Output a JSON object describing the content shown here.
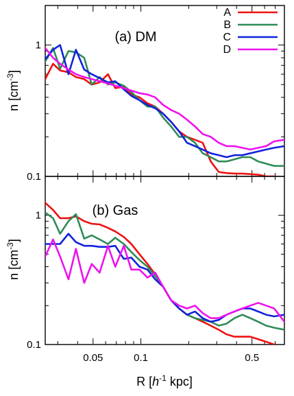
{
  "figure": {
    "xlabel_prefix": "R [",
    "xlabel_italic": "h",
    "xlabel_sup": "-1",
    "xlabel_suffix": " kpc]",
    "ylabel_main": "n [cm",
    "ylabel_sup": "-3",
    "ylabel_close": "]"
  },
  "chart_data": [
    {
      "type": "line",
      "title": "(a) DM",
      "xscale": "log",
      "yscale": "log",
      "xlim": [
        0.025,
        0.8
      ],
      "ylim": [
        0.1,
        2.0
      ],
      "xticks": [
        0.05,
        0.1,
        0.5
      ],
      "xticklabels": [
        "",
        "",
        ""
      ],
      "yticks": [
        0.1,
        1
      ],
      "yticklabels": [
        "0.1",
        "1"
      ],
      "legend": "top-right",
      "series": [
        {
          "name": "A",
          "color": "#ee1111",
          "x": [
            0.025,
            0.028,
            0.031,
            0.035,
            0.039,
            0.044,
            0.049,
            0.055,
            0.062,
            0.069,
            0.078,
            0.087,
            0.098,
            0.11,
            0.123,
            0.138,
            0.155,
            0.174,
            0.195,
            0.219,
            0.245,
            0.275,
            0.309,
            0.346,
            0.388,
            0.435,
            0.488,
            0.547,
            0.614,
            0.7
          ],
          "y": [
            0.55,
            0.72,
            0.64,
            0.62,
            0.57,
            0.55,
            0.5,
            0.52,
            0.6,
            0.47,
            0.48,
            0.42,
            0.4,
            0.36,
            0.34,
            0.3,
            0.26,
            0.22,
            0.2,
            0.19,
            0.18,
            0.13,
            0.108,
            0.106,
            0.105,
            0.105,
            0.104,
            0.103,
            0.1,
            0.1
          ]
        },
        {
          "name": "B",
          "color": "#2e8b57",
          "x": [
            0.025,
            0.028,
            0.031,
            0.035,
            0.039,
            0.044,
            0.049,
            0.055,
            0.062,
            0.069,
            0.078,
            0.087,
            0.098,
            0.11,
            0.123,
            0.138,
            0.155,
            0.174,
            0.195,
            0.219,
            0.245,
            0.275,
            0.309,
            0.346,
            0.388,
            0.435,
            0.488,
            0.547,
            0.614,
            0.69,
            0.8
          ],
          "y": [
            0.75,
            0.95,
            0.66,
            0.9,
            0.88,
            0.8,
            0.5,
            0.57,
            0.5,
            0.52,
            0.49,
            0.44,
            0.38,
            0.34,
            0.34,
            0.28,
            0.24,
            0.2,
            0.2,
            0.18,
            0.15,
            0.14,
            0.13,
            0.13,
            0.135,
            0.14,
            0.14,
            0.13,
            0.125,
            0.12,
            0.12
          ]
        },
        {
          "name": "C",
          "color": "#1122dd",
          "x": [
            0.025,
            0.028,
            0.031,
            0.035,
            0.039,
            0.044,
            0.049,
            0.055,
            0.062,
            0.069,
            0.078,
            0.087,
            0.098,
            0.11,
            0.123,
            0.138,
            0.155,
            0.174,
            0.195,
            0.219,
            0.245,
            0.275,
            0.309,
            0.346,
            0.388,
            0.435,
            0.488,
            0.547,
            0.614,
            0.69,
            0.8
          ],
          "y": [
            0.78,
            0.92,
            1.0,
            0.6,
            0.92,
            0.65,
            0.6,
            0.56,
            0.52,
            0.53,
            0.46,
            0.41,
            0.38,
            0.35,
            0.33,
            0.3,
            0.26,
            0.22,
            0.18,
            0.17,
            0.16,
            0.15,
            0.145,
            0.14,
            0.145,
            0.145,
            0.15,
            0.155,
            0.16,
            0.165,
            0.17
          ]
        },
        {
          "name": "D",
          "color": "#ee11ee",
          "x": [
            0.025,
            0.028,
            0.031,
            0.035,
            0.039,
            0.044,
            0.049,
            0.055,
            0.062,
            0.069,
            0.078,
            0.087,
            0.098,
            0.11,
            0.123,
            0.138,
            0.155,
            0.174,
            0.195,
            0.219,
            0.245,
            0.275,
            0.309,
            0.346,
            0.388,
            0.435,
            0.488,
            0.547,
            0.614,
            0.69,
            0.8
          ],
          "y": [
            0.95,
            0.8,
            0.72,
            0.65,
            0.6,
            0.57,
            0.55,
            0.53,
            0.51,
            0.49,
            0.47,
            0.45,
            0.43,
            0.42,
            0.4,
            0.35,
            0.32,
            0.3,
            0.27,
            0.24,
            0.21,
            0.2,
            0.18,
            0.17,
            0.17,
            0.165,
            0.16,
            0.165,
            0.17,
            0.185,
            0.19
          ]
        }
      ]
    },
    {
      "type": "line",
      "title": "(b) Gas",
      "xscale": "log",
      "yscale": "log",
      "xlim": [
        0.025,
        0.8
      ],
      "ylim": [
        0.1,
        2.0
      ],
      "xticks": [
        0.05,
        0.1,
        0.5
      ],
      "xticklabels": [
        "0.05",
        "0.1",
        "0.5"
      ],
      "yticks": [
        0.1,
        1
      ],
      "yticklabels": [
        "0.1",
        "1"
      ],
      "series": [
        {
          "name": "A",
          "color": "#ee1111",
          "x": [
            0.025,
            0.028,
            0.031,
            0.035,
            0.039,
            0.044,
            0.049,
            0.055,
            0.062,
            0.069,
            0.078,
            0.087,
            0.098,
            0.11,
            0.123,
            0.138,
            0.155,
            0.174,
            0.195,
            0.219,
            0.245,
            0.275,
            0.309,
            0.346,
            0.388,
            0.435,
            0.488,
            0.547,
            0.614,
            0.69
          ],
          "y": [
            1.25,
            1.1,
            0.95,
            0.95,
            0.98,
            0.9,
            0.86,
            0.85,
            0.8,
            0.75,
            0.68,
            0.6,
            0.5,
            0.42,
            0.35,
            0.28,
            0.22,
            0.19,
            0.17,
            0.16,
            0.15,
            0.14,
            0.13,
            0.12,
            0.115,
            0.115,
            0.115,
            0.11,
            0.105,
            0.1
          ]
        },
        {
          "name": "B",
          "color": "#2e8b57",
          "x": [
            0.025,
            0.028,
            0.031,
            0.035,
            0.039,
            0.044,
            0.049,
            0.055,
            0.062,
            0.069,
            0.078,
            0.087,
            0.098,
            0.11,
            0.123,
            0.138,
            0.155,
            0.174,
            0.195,
            0.219,
            0.245,
            0.275,
            0.309,
            0.346,
            0.388,
            0.435,
            0.488,
            0.547,
            0.614,
            0.69,
            0.8
          ],
          "y": [
            1.05,
            0.95,
            0.72,
            0.9,
            1.02,
            0.66,
            0.7,
            0.65,
            0.6,
            0.67,
            0.6,
            0.52,
            0.45,
            0.4,
            0.34,
            0.28,
            0.22,
            0.19,
            0.17,
            0.16,
            0.155,
            0.15,
            0.14,
            0.145,
            0.16,
            0.17,
            0.16,
            0.15,
            0.14,
            0.135,
            0.13
          ]
        },
        {
          "name": "C",
          "color": "#1122dd",
          "x": [
            0.025,
            0.028,
            0.031,
            0.035,
            0.039,
            0.044,
            0.049,
            0.055,
            0.062,
            0.069,
            0.078,
            0.087,
            0.098,
            0.11,
            0.123,
            0.138,
            0.155,
            0.174,
            0.195,
            0.219,
            0.245,
            0.275,
            0.309,
            0.346,
            0.388,
            0.435,
            0.488,
            0.547,
            0.614,
            0.69,
            0.8
          ],
          "y": [
            0.6,
            0.6,
            0.6,
            0.72,
            0.62,
            0.58,
            0.58,
            0.57,
            0.57,
            0.58,
            0.46,
            0.47,
            0.4,
            0.38,
            0.32,
            0.28,
            0.22,
            0.19,
            0.17,
            0.18,
            0.16,
            0.15,
            0.155,
            0.17,
            0.18,
            0.19,
            0.19,
            0.18,
            0.17,
            0.165,
            0.17
          ]
        },
        {
          "name": "D",
          "color": "#ee11ee",
          "x": [
            0.025,
            0.028,
            0.031,
            0.035,
            0.039,
            0.044,
            0.049,
            0.055,
            0.062,
            0.069,
            0.078,
            0.087,
            0.098,
            0.11,
            0.123,
            0.138,
            0.155,
            0.174,
            0.195,
            0.219,
            0.245,
            0.275,
            0.309,
            0.346,
            0.388,
            0.435,
            0.488,
            0.547,
            0.614,
            0.69,
            0.8
          ],
          "y": [
            0.48,
            0.65,
            0.48,
            0.32,
            0.55,
            0.3,
            0.42,
            0.36,
            0.58,
            0.4,
            0.58,
            0.38,
            0.38,
            0.33,
            0.36,
            0.28,
            0.22,
            0.2,
            0.19,
            0.2,
            0.175,
            0.16,
            0.16,
            0.17,
            0.18,
            0.19,
            0.2,
            0.21,
            0.2,
            0.19,
            0.15
          ]
        }
      ]
    }
  ]
}
